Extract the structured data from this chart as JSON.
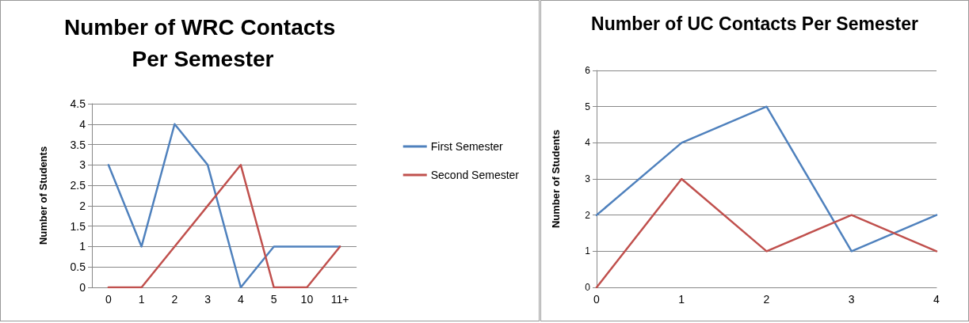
{
  "chart_data": [
    {
      "type": "line",
      "title": "Number of WRC Contacts Per Semester",
      "ylabel": "Number of Students",
      "categories": [
        "0",
        "1",
        "2",
        "3",
        "4",
        "5",
        "10",
        "11+"
      ],
      "series": [
        {
          "name": "First Semester",
          "color": "#4f81bd",
          "values": [
            3,
            1,
            4,
            3,
            0,
            1,
            1,
            1
          ]
        },
        {
          "name": "Second Semester",
          "color": "#c0504d",
          "values": [
            0,
            0,
            1,
            2,
            3,
            0,
            0,
            1
          ]
        }
      ],
      "ylim": [
        0,
        4.5
      ],
      "yticks": [
        0,
        0.5,
        1,
        1.5,
        2,
        2.5,
        3,
        3.5,
        4,
        4.5
      ],
      "grid": "y",
      "legend": "right",
      "marker": "none",
      "line_style": "solid"
    },
    {
      "type": "line",
      "title": "Number of UC Contacts Per Semester",
      "ylabel": "Number of Students",
      "categories": [
        "0",
        "1",
        "2",
        "3",
        "4"
      ],
      "series": [
        {
          "color": "#4f81bd",
          "values": [
            2,
            4,
            5,
            1,
            2
          ]
        },
        {
          "color": "#c0504d",
          "values": [
            0,
            3,
            1,
            2,
            1
          ]
        }
      ],
      "ylim": [
        0,
        6
      ],
      "yticks": [
        0,
        1,
        2,
        3,
        4,
        5,
        6
      ],
      "grid": "y",
      "legend": false,
      "marker": "none",
      "line_style": "solid"
    }
  ]
}
